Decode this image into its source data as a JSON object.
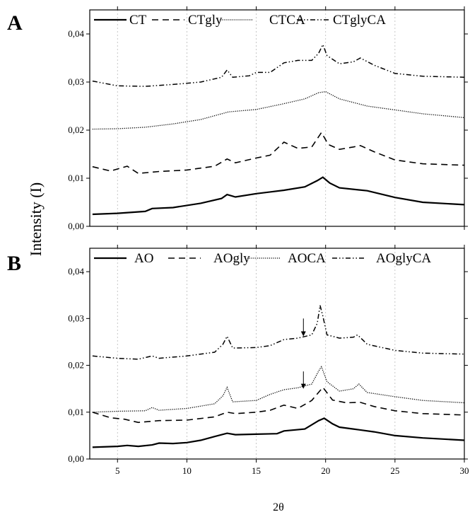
{
  "chart_data": {
    "ylabel": "Intensity (I)",
    "xlabel": "2θ",
    "styles": {
      "solid": {
        "dash": "",
        "width": 2.2
      },
      "dashed": {
        "dash": "9 6",
        "width": 1.6
      },
      "dotted": {
        "dash": "1.2 1.6",
        "width": 1.3
      },
      "dashdot": {
        "dash": "7 3 1.5 3 1.5 3",
        "width": 1.5
      }
    },
    "panels": [
      {
        "label": "A",
        "type": "line",
        "xlim": [
          3,
          30
        ],
        "ylim": [
          0,
          0.045
        ],
        "xticks": [
          5,
          10,
          15,
          20,
          25,
          30
        ],
        "yticks": [
          0,
          0.01,
          0.02,
          0.03,
          0.04
        ],
        "ytick_labels": [
          "0,00",
          "0,01",
          "0,02",
          "0,03",
          "0,04"
        ],
        "grid": "vertical",
        "legend_position": "top",
        "arrows": [],
        "series": [
          {
            "name": "CT",
            "style": "solid",
            "x": [
              3.2,
              5,
              7,
              7.5,
              9,
              11,
              12.5,
              12.9,
              13.5,
              15,
              17,
              18.5,
              19.4,
              19.8,
              20.3,
              21,
              23,
              25,
              27,
              30
            ],
            "y": [
              0.0025,
              0.0027,
              0.0031,
              0.0037,
              0.0039,
              0.0048,
              0.0058,
              0.0066,
              0.0061,
              0.0068,
              0.0075,
              0.0082,
              0.0095,
              0.0102,
              0.009,
              0.008,
              0.0074,
              0.006,
              0.005,
              0.0045
            ]
          },
          {
            "name": "CTgly",
            "style": "dashed",
            "x": [
              3.2,
              4.5,
              5.7,
              6.5,
              8,
              10,
              12,
              12.9,
              13.5,
              15,
              16,
              17,
              18,
              19,
              19.7,
              20.2,
              21,
              22,
              22.5,
              23.5,
              25,
              27,
              30
            ],
            "y": [
              0.0124,
              0.0115,
              0.0125,
              0.011,
              0.0114,
              0.0117,
              0.0125,
              0.014,
              0.0132,
              0.0142,
              0.0148,
              0.0175,
              0.0162,
              0.0165,
              0.0195,
              0.017,
              0.016,
              0.0165,
              0.0168,
              0.0155,
              0.0138,
              0.013,
              0.0127
            ]
          },
          {
            "name": "CTCA",
            "style": "dotted",
            "x": [
              3.2,
              5,
              7,
              9,
              11,
              13,
              15,
              17,
              18.5,
              19.5,
              20,
              21,
              23,
              25,
              27,
              30
            ],
            "y": [
              0.0202,
              0.0203,
              0.0206,
              0.0213,
              0.0222,
              0.0238,
              0.0243,
              0.0255,
              0.0265,
              0.0278,
              0.028,
              0.0265,
              0.025,
              0.0242,
              0.0234,
              0.0226
            ]
          },
          {
            "name": "CTglyCA",
            "style": "dashdot",
            "x": [
              3.2,
              5,
              7,
              9,
              11,
              12.5,
              12.9,
              13.3,
              14.5,
              15,
              16,
              17,
              18,
              19,
              19.5,
              19.8,
              20.1,
              21,
              22,
              22.5,
              23.5,
              25,
              27,
              30
            ],
            "y": [
              0.0302,
              0.0292,
              0.0291,
              0.0295,
              0.03,
              0.031,
              0.0325,
              0.031,
              0.0313,
              0.032,
              0.032,
              0.034,
              0.0345,
              0.0345,
              0.036,
              0.0378,
              0.0355,
              0.0338,
              0.0342,
              0.035,
              0.0335,
              0.0318,
              0.0312,
              0.031
            ]
          }
        ]
      },
      {
        "label": "B",
        "type": "line",
        "xlim": [
          3,
          30
        ],
        "ylim": [
          0,
          0.045
        ],
        "xticks": [
          5,
          10,
          15,
          20,
          25,
          30
        ],
        "xtick_labels": [
          "5",
          "10",
          "15",
          "20",
          "25",
          "30"
        ],
        "yticks": [
          0,
          0.01,
          0.02,
          0.03,
          0.04
        ],
        "ytick_labels": [
          "0,00",
          "0,01",
          "0,02",
          "0,03",
          "0,04"
        ],
        "grid": "vertical",
        "legend_position": "top",
        "arrows": [
          {
            "x": 18.4,
            "y_from": 0.03,
            "y_to": 0.0262
          },
          {
            "x": 18.4,
            "y_from": 0.0187,
            "y_to": 0.015
          }
        ],
        "series": [
          {
            "name": "AO",
            "style": "solid",
            "x": [
              3.2,
              5,
              5.7,
              6.5,
              7.5,
              8,
              9,
              10,
              11,
              12,
              12.9,
              13.5,
              15,
              16.5,
              17,
              18.5,
              19.5,
              19.9,
              20.5,
              21,
              22,
              23.5,
              25,
              27,
              30
            ],
            "y": [
              0.0025,
              0.0027,
              0.0029,
              0.0027,
              0.003,
              0.0034,
              0.0033,
              0.0035,
              0.004,
              0.0048,
              0.0055,
              0.0052,
              0.0053,
              0.0054,
              0.006,
              0.0064,
              0.0082,
              0.0087,
              0.0075,
              0.0068,
              0.0064,
              0.0058,
              0.005,
              0.0045,
              0.004
            ]
          },
          {
            "name": "AOgly",
            "style": "dashed",
            "x": [
              3.2,
              4.5,
              5.5,
              6.5,
              8,
              10,
              12,
              12.9,
              13.5,
              15,
              16,
              17,
              18,
              19,
              19.8,
              20.5,
              21.5,
              22.5,
              23.5,
              25,
              27,
              30
            ],
            "y": [
              0.01,
              0.0088,
              0.0085,
              0.0078,
              0.0082,
              0.0083,
              0.009,
              0.01,
              0.0097,
              0.01,
              0.0104,
              0.0115,
              0.0108,
              0.0125,
              0.0153,
              0.0126,
              0.012,
              0.0121,
              0.0112,
              0.0103,
              0.0097,
              0.0094
            ]
          },
          {
            "name": "AOCA",
            "style": "dotted",
            "x": [
              3.2,
              5,
              7,
              7.5,
              8,
              10,
              12,
              12.6,
              12.9,
              13.3,
              15,
              16,
              17,
              18,
              19,
              19.5,
              19.7,
              20.1,
              21,
              22,
              22.4,
              23,
              25,
              27,
              30
            ],
            "y": [
              0.01,
              0.0102,
              0.0103,
              0.011,
              0.0104,
              0.0108,
              0.0118,
              0.0135,
              0.0153,
              0.0122,
              0.0125,
              0.0138,
              0.0148,
              0.0152,
              0.016,
              0.0188,
              0.0197,
              0.0165,
              0.0145,
              0.015,
              0.016,
              0.0142,
              0.0133,
              0.0125,
              0.012
            ]
          },
          {
            "name": "AOglyCA",
            "style": "dashdot",
            "x": [
              3.2,
              5,
              6.5,
              7.5,
              8,
              10,
              12,
              12.6,
              12.9,
              13.3,
              15,
              16,
              17,
              18,
              19,
              19.4,
              19.6,
              19.8,
              20.1,
              21,
              22,
              22.3,
              23,
              25,
              27,
              30
            ],
            "y": [
              0.022,
              0.0215,
              0.0213,
              0.022,
              0.0215,
              0.022,
              0.0228,
              0.0245,
              0.0262,
              0.0237,
              0.0238,
              0.0242,
              0.0255,
              0.0258,
              0.0265,
              0.029,
              0.0328,
              0.0305,
              0.0265,
              0.0258,
              0.026,
              0.0265,
              0.0245,
              0.0232,
              0.0226,
              0.0224
            ]
          }
        ]
      }
    ]
  }
}
